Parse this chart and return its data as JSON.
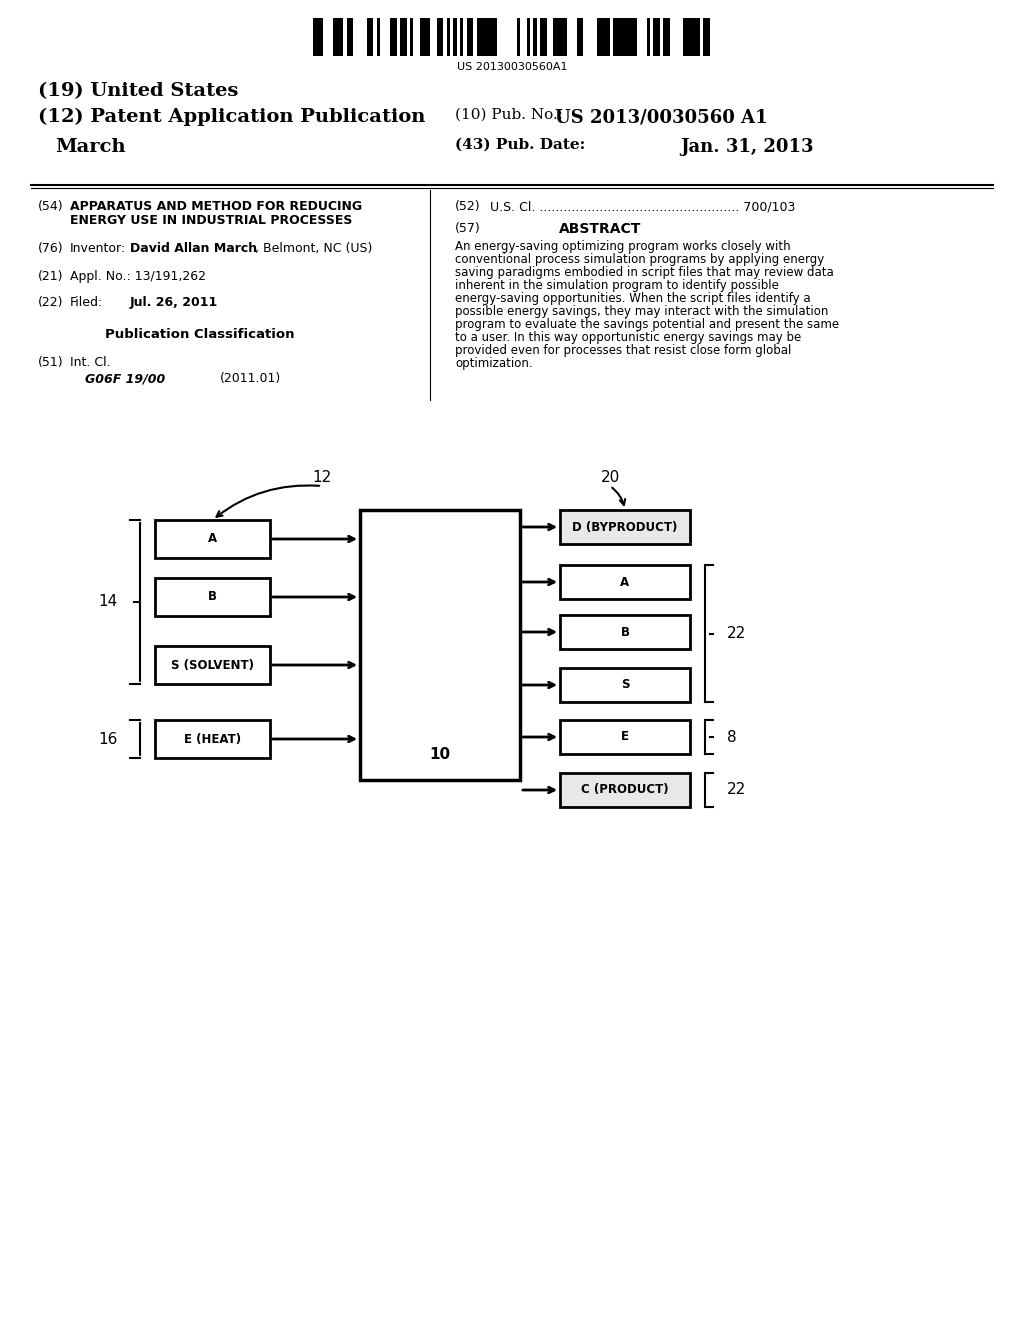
{
  "bg_color": "#ffffff",
  "barcode_text": "US 20130030560A1",
  "title_19": "(19) United States",
  "title_12": "(12) Patent Application Publication",
  "title_month": "March",
  "pub_no_label": "(10) Pub. No.:",
  "pub_no_value": "US 2013/0030560 A1",
  "pub_date_label": "(43) Pub. Date:",
  "pub_date_value": "Jan. 31, 2013",
  "field54_label": "(54)",
  "field54_text": "APPARATUS AND METHOD FOR REDUCING\nENERGY USE IN INDUSTRIAL PROCESSES",
  "field52_label": "(52)",
  "field52_text": "U.S. Cl. .................................................. 700/103",
  "field57_label": "(57)",
  "field57_title": "ABSTRACT",
  "abstract_text": "An energy-saving optimizing program works closely with conventional process simulation programs by applying energy saving paradigms embodied in script files that may review data inherent in the simulation program to identify possible energy-saving opportunities. When the script files identify a possible energy savings, they may interact with the simulation program to evaluate the savings potential and present the same to a user. In this way opportunistic energy savings may be provided even for processes that resist close form global optimization.",
  "field76_label": "(76)",
  "field76_text": "Inventor:   David Allan March, Belmont, NC (US)",
  "field21_label": "(21)",
  "field21_text": "Appl. No.: 13/191,262",
  "field22_label": "(22)",
  "field22_text": "Filed:       Jul. 26, 2011",
  "pub_class_title": "Publication Classification",
  "field51_label": "(51)",
  "field51_text": "Int. Cl.",
  "field51_class": "G06F 19/00",
  "field51_year": "(2011.01)",
  "diagram_label_10": "10",
  "diagram_label_12": "12",
  "diagram_label_14": "14",
  "diagram_label_16": "16",
  "diagram_label_20": "20",
  "diagram_label_22a": "22",
  "diagram_label_22b": "22",
  "diagram_label_8": "8",
  "input_boxes": [
    "A",
    "B",
    "S (SOLVENT)",
    "E (HEAT)"
  ],
  "output_boxes": [
    "D (BYPRODUCT)",
    "A",
    "B",
    "S",
    "E",
    "C (PRODUCT)"
  ]
}
